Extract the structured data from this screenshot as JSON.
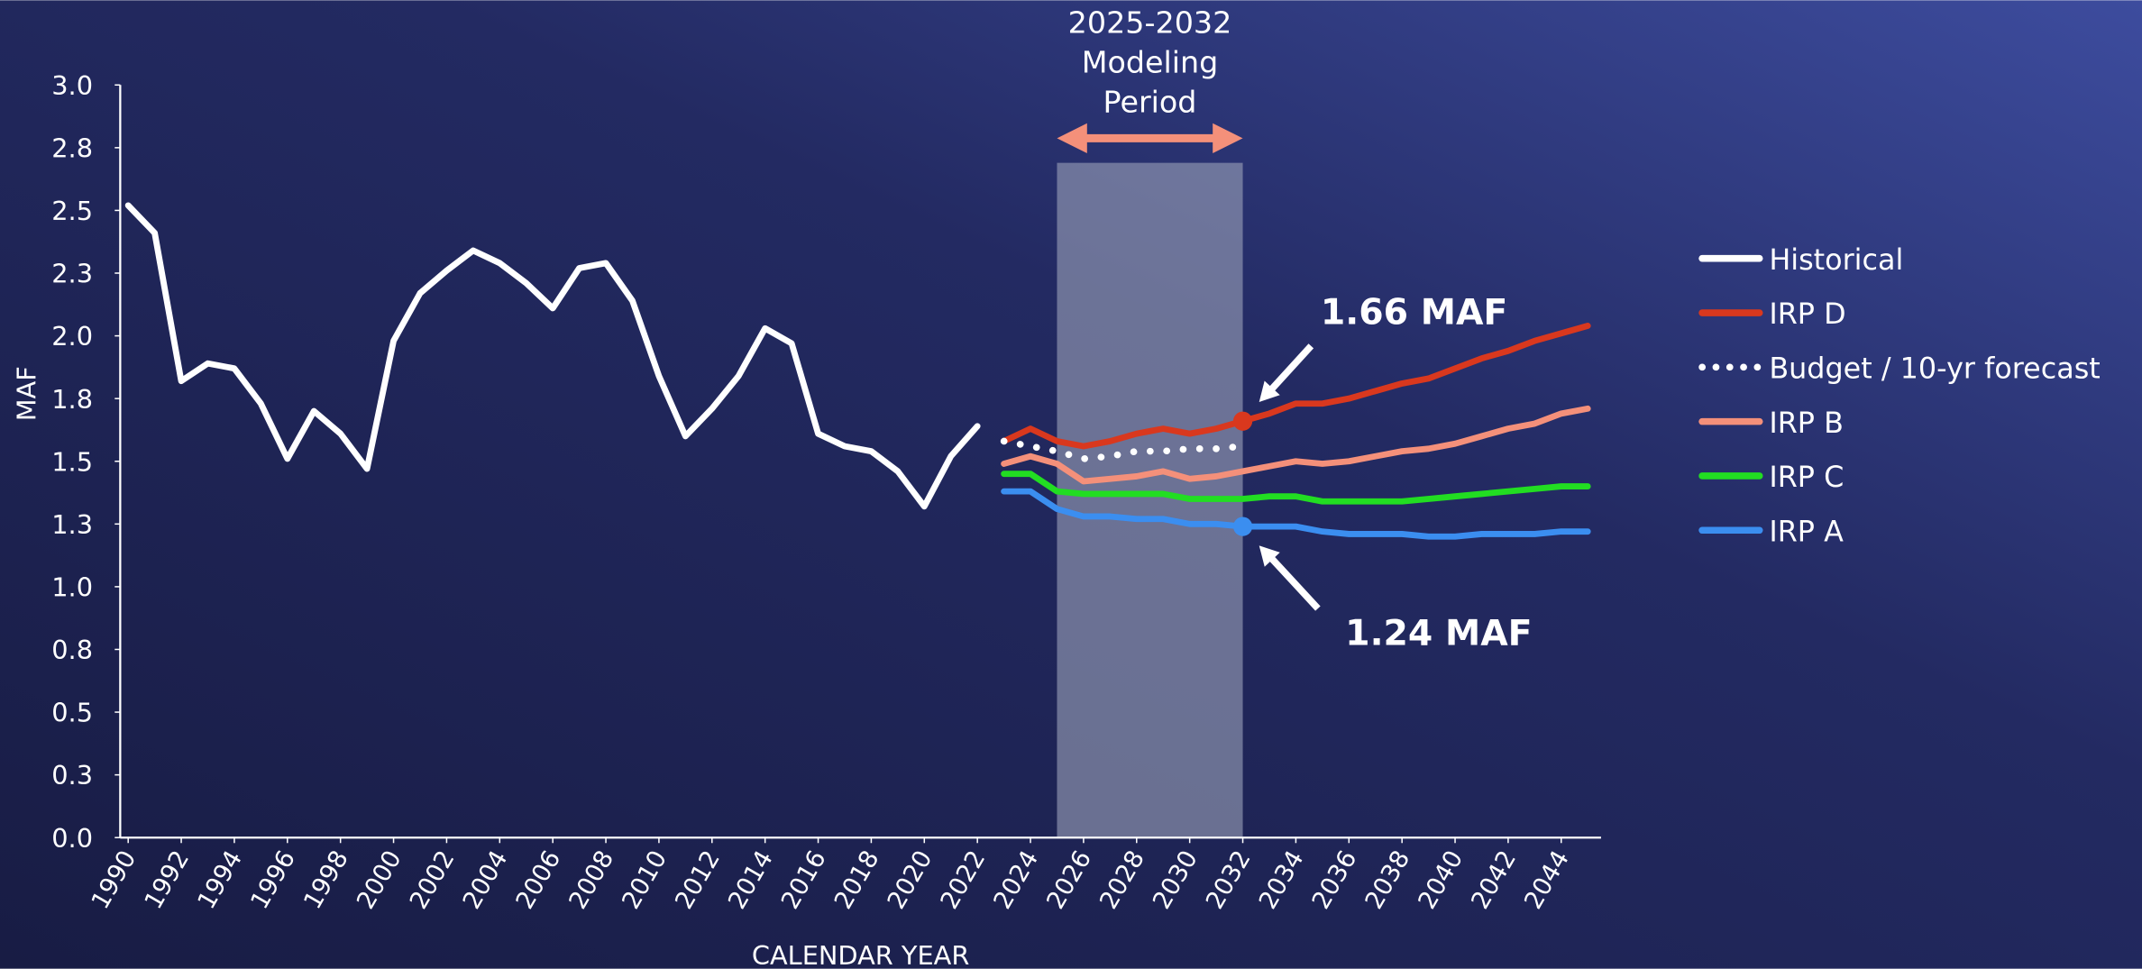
{
  "chart_data": {
    "type": "line",
    "x_label": "CALENDAR YEAR",
    "y_label": "MAF",
    "x": [
      1990,
      1991,
      1992,
      1993,
      1994,
      1995,
      1996,
      1997,
      1998,
      1999,
      2000,
      2001,
      2002,
      2003,
      2004,
      2005,
      2006,
      2007,
      2008,
      2009,
      2010,
      2011,
      2012,
      2013,
      2014,
      2015,
      2016,
      2017,
      2018,
      2019,
      2020,
      2021,
      2022,
      2023,
      2024,
      2025,
      2026,
      2027,
      2028,
      2029,
      2030,
      2031,
      2032,
      2033,
      2034,
      2035,
      2036,
      2037,
      2038,
      2039,
      2040,
      2041,
      2042,
      2043,
      2044,
      2045
    ],
    "series": [
      {
        "name": "Historical",
        "color": "#ffffff",
        "dash": false,
        "values": [
          2.52,
          2.41,
          1.82,
          1.89,
          1.87,
          1.73,
          1.51,
          1.7,
          1.61,
          1.47,
          1.98,
          2.17,
          2.26,
          2.34,
          2.29,
          2.21,
          2.11,
          2.27,
          2.29,
          2.14,
          1.84,
          1.6,
          1.71,
          1.84,
          2.03,
          1.97,
          1.61,
          1.56,
          1.54,
          1.46,
          1.32,
          1.52,
          1.64,
          null,
          null,
          null,
          null,
          null,
          null,
          null,
          null,
          null,
          null,
          null,
          null,
          null,
          null,
          null,
          null,
          null,
          null,
          null,
          null,
          null,
          null,
          null
        ]
      },
      {
        "name": "IRP D",
        "color": "#d9381e",
        "dash": false,
        "values": [
          null,
          null,
          null,
          null,
          null,
          null,
          null,
          null,
          null,
          null,
          null,
          null,
          null,
          null,
          null,
          null,
          null,
          null,
          null,
          null,
          null,
          null,
          null,
          null,
          null,
          null,
          null,
          null,
          null,
          null,
          null,
          null,
          null,
          1.58,
          1.63,
          1.58,
          1.56,
          1.58,
          1.61,
          1.63,
          1.61,
          1.63,
          1.66,
          1.69,
          1.73,
          1.73,
          1.75,
          1.78,
          1.81,
          1.83,
          1.87,
          1.91,
          1.94,
          1.98,
          2.01,
          2.04
        ]
      },
      {
        "name": "Budget / 10-yr forecast",
        "color": "#ffffff",
        "dash": true,
        "values": [
          null,
          null,
          null,
          null,
          null,
          null,
          null,
          null,
          null,
          null,
          null,
          null,
          null,
          null,
          null,
          null,
          null,
          null,
          null,
          null,
          null,
          null,
          null,
          null,
          null,
          null,
          null,
          null,
          null,
          null,
          null,
          null,
          null,
          1.58,
          1.56,
          1.54,
          1.51,
          1.52,
          1.54,
          1.54,
          1.55,
          1.55,
          1.56,
          null,
          null,
          null,
          null,
          null,
          null,
          null,
          null,
          null,
          null,
          null,
          null,
          null
        ]
      },
      {
        "name": "IRP B",
        "color": "#f4907a",
        "dash": false,
        "values": [
          null,
          null,
          null,
          null,
          null,
          null,
          null,
          null,
          null,
          null,
          null,
          null,
          null,
          null,
          null,
          null,
          null,
          null,
          null,
          null,
          null,
          null,
          null,
          null,
          null,
          null,
          null,
          null,
          null,
          null,
          null,
          null,
          null,
          1.49,
          1.52,
          1.49,
          1.42,
          1.43,
          1.44,
          1.46,
          1.43,
          1.44,
          1.46,
          1.48,
          1.5,
          1.49,
          1.5,
          1.52,
          1.54,
          1.55,
          1.57,
          1.6,
          1.63,
          1.65,
          1.69,
          1.71
        ]
      },
      {
        "name": "IRP C",
        "color": "#22dd22",
        "dash": false,
        "values": [
          null,
          null,
          null,
          null,
          null,
          null,
          null,
          null,
          null,
          null,
          null,
          null,
          null,
          null,
          null,
          null,
          null,
          null,
          null,
          null,
          null,
          null,
          null,
          null,
          null,
          null,
          null,
          null,
          null,
          null,
          null,
          null,
          null,
          1.45,
          1.45,
          1.38,
          1.37,
          1.37,
          1.37,
          1.37,
          1.35,
          1.35,
          1.35,
          1.36,
          1.36,
          1.34,
          1.34,
          1.34,
          1.34,
          1.35,
          1.36,
          1.37,
          1.38,
          1.39,
          1.4,
          1.4
        ]
      },
      {
        "name": "IRP A",
        "color": "#3b8ef0",
        "dash": false,
        "values": [
          null,
          null,
          null,
          null,
          null,
          null,
          null,
          null,
          null,
          null,
          null,
          null,
          null,
          null,
          null,
          null,
          null,
          null,
          null,
          null,
          null,
          null,
          null,
          null,
          null,
          null,
          null,
          null,
          null,
          null,
          null,
          null,
          null,
          1.38,
          1.38,
          1.31,
          1.28,
          1.28,
          1.27,
          1.27,
          1.25,
          1.25,
          1.24,
          1.24,
          1.24,
          1.22,
          1.21,
          1.21,
          1.21,
          1.2,
          1.2,
          1.21,
          1.21,
          1.21,
          1.22,
          1.22
        ]
      }
    ],
    "xlim": [
      1989.7,
      2045.5
    ],
    "xticks": [
      1990,
      1992,
      1994,
      1996,
      1998,
      2000,
      2002,
      2004,
      2006,
      2008,
      2010,
      2012,
      2014,
      2016,
      2018,
      2020,
      2022,
      2024,
      2026,
      2028,
      2030,
      2032,
      2034,
      2036,
      2038,
      2040,
      2042,
      2044
    ],
    "ylim": [
      0,
      3
    ],
    "yticks": [
      {
        "value": 0,
        "label": "0.0"
      },
      {
        "value": 0.25,
        "label": "0.3"
      },
      {
        "value": 0.5,
        "label": "0.5"
      },
      {
        "value": 0.75,
        "label": "0.8"
      },
      {
        "value": 1,
        "label": "1.0"
      },
      {
        "value": 1.25,
        "label": "1.3"
      },
      {
        "value": 1.5,
        "label": "1.5"
      },
      {
        "value": 1.75,
        "label": "1.8"
      },
      {
        "value": 2,
        "label": "2.0"
      },
      {
        "value": 2.25,
        "label": "2.3"
      },
      {
        "value": 2.5,
        "label": "2.5"
      },
      {
        "value": 2.75,
        "label": "2.8"
      },
      {
        "value": 3,
        "label": "3.0"
      }
    ],
    "period": [
      2025,
      2032
    ],
    "period_label": [
      "2025-2032",
      "Modeling",
      "Period"
    ],
    "annotations": [
      {
        "text": "1.66 MAF",
        "x": 2032,
        "y": 1.66,
        "color": "#d9381e"
      },
      {
        "text": "1.24 MAF",
        "x": 2032,
        "y": 1.24,
        "color": "#3b8ef0"
      }
    ],
    "legend": "right"
  }
}
